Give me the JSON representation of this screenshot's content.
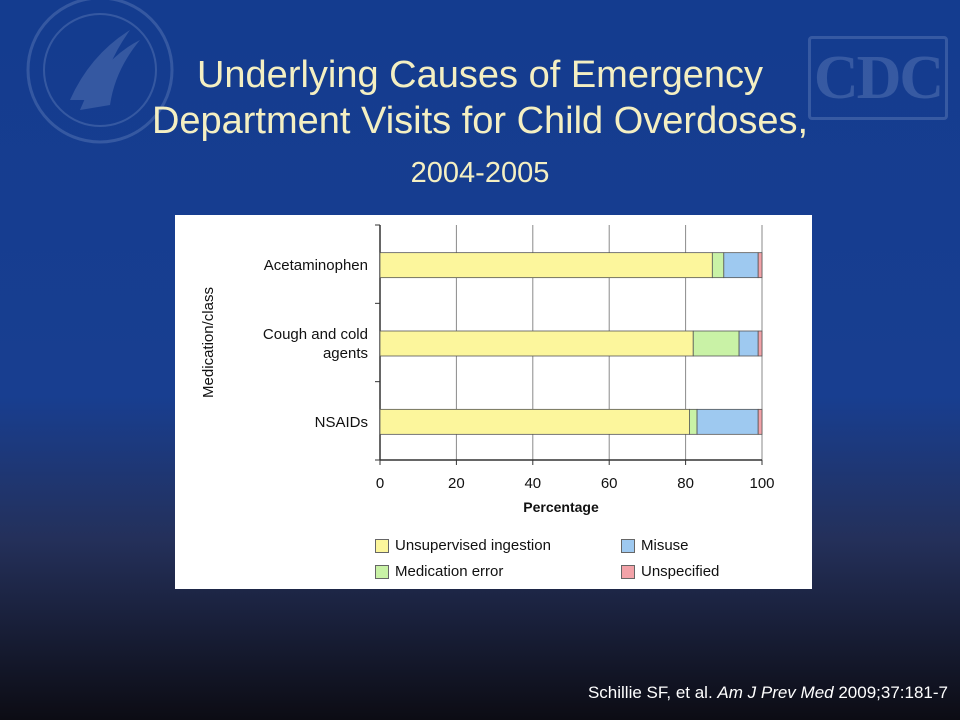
{
  "slide": {
    "title_line1": "Underlying Causes of Emergency",
    "title_line2": "Department Visits for Child Overdoses,",
    "title_years": "2004-2005",
    "logo_text": "CDC",
    "citation_authors": "Schillie SF, et al. ",
    "citation_journal": "Am J Prev Med",
    "citation_ref": " 2009;37:181-7"
  },
  "colors": {
    "unsupervised": "#fcf69c",
    "medication_error": "#c9f2a6",
    "misuse": "#9ec9f0",
    "unspecified": "#f2a2a8"
  },
  "chart_data": {
    "type": "bar",
    "orientation": "horizontal",
    "stacked": true,
    "categories": [
      [
        "Acetaminophen"
      ],
      [
        "Cough and cold",
        "agents"
      ],
      [
        "NSAIDs"
      ]
    ],
    "series": [
      {
        "name": "Unsupervised ingestion",
        "values": [
          87,
          82,
          81
        ]
      },
      {
        "name": "Medication error",
        "values": [
          3,
          12,
          2
        ]
      },
      {
        "name": "Misuse",
        "values": [
          9,
          5,
          16
        ]
      },
      {
        "name": "Unspecified",
        "values": [
          1,
          1,
          1
        ]
      }
    ],
    "xlabel": "Percentage",
    "ylabel": "Medication/class",
    "xlim": [
      0,
      100
    ],
    "xticks": [
      0,
      20,
      40,
      60,
      80,
      100
    ],
    "grid": true,
    "legend_placement": "bottom"
  }
}
